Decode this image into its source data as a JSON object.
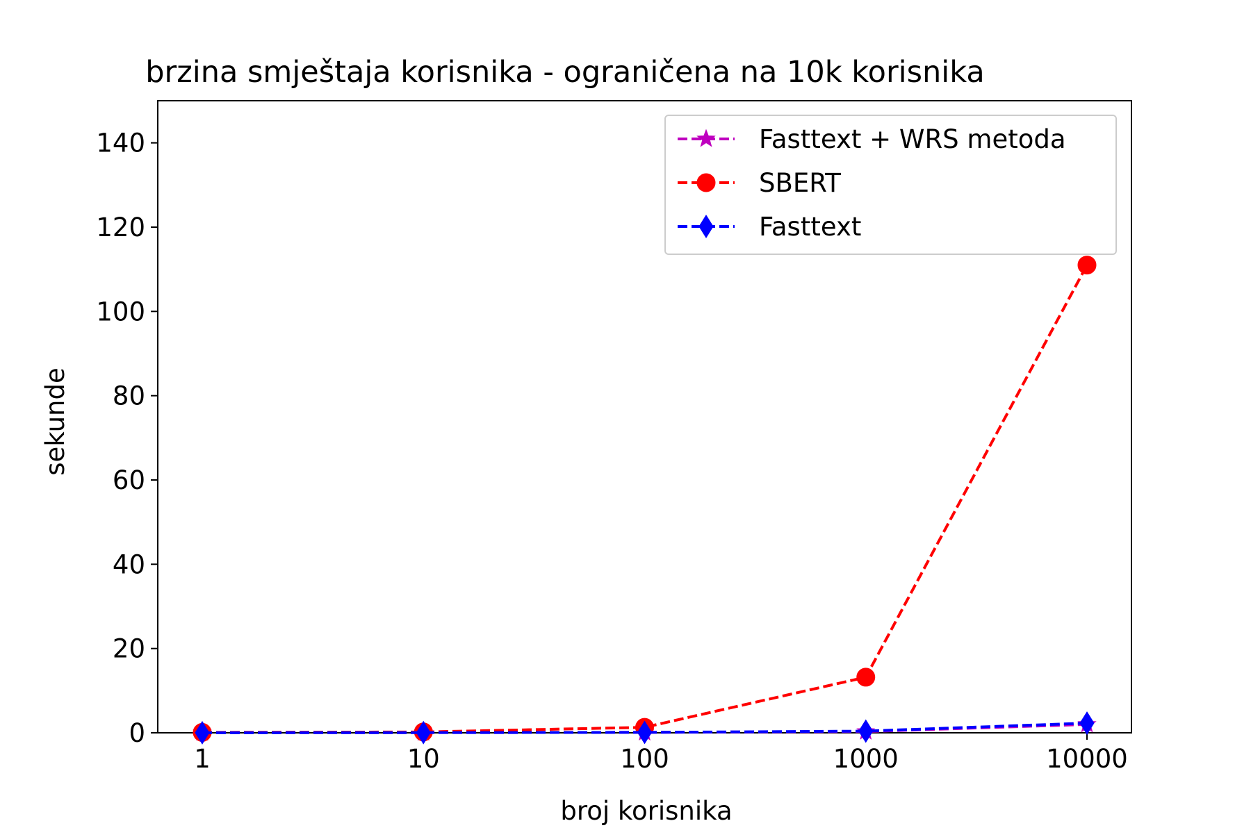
{
  "chart_data": {
    "type": "line",
    "title": "brzina smještaja korisnika - ograničena na 10k korisnika",
    "xlabel": "broj korisnika",
    "ylabel": "sekunde",
    "x_scale": "log",
    "x": [
      1,
      10,
      100,
      1000,
      10000
    ],
    "x_tick_labels": [
      "1",
      "10",
      "100",
      "1000",
      "10000"
    ],
    "ylim": [
      0,
      150
    ],
    "y_ticks": [
      0,
      20,
      40,
      60,
      80,
      100,
      120,
      140
    ],
    "grid": false,
    "legend_position": "top-right",
    "series": [
      {
        "name": "Fasttext + WRS metoda",
        "color": "#bf00bf",
        "marker": "star",
        "linestyle": "dashed",
        "values": [
          0.02,
          0.05,
          0.1,
          0.3,
          2.0
        ]
      },
      {
        "name": "SBERT",
        "color": "#ff0000",
        "marker": "circle",
        "linestyle": "dashed",
        "values": [
          0.1,
          0.2,
          1.3,
          13.2,
          111.0
        ]
      },
      {
        "name": "Fasttext",
        "color": "#0000ff",
        "marker": "diamond",
        "linestyle": "dashed",
        "values": [
          0.02,
          0.05,
          0.1,
          0.4,
          2.3
        ]
      }
    ]
  }
}
